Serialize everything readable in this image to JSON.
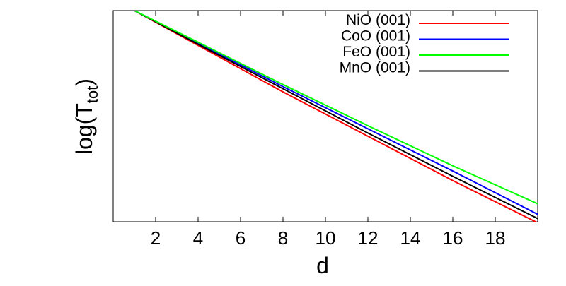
{
  "chart_data": {
    "type": "line",
    "xlabel": "d",
    "ylabel": {
      "main": "log(T",
      "sub": "tot",
      "close": ")"
    },
    "xlim": [
      0,
      20
    ],
    "ylim": [
      0,
      1
    ],
    "x_ticks": [
      2,
      4,
      6,
      8,
      10,
      12,
      14,
      16,
      18
    ],
    "y_tick_labels": false,
    "legend_position": "top-right",
    "series": [
      {
        "name": "NiO (001)",
        "color": "#ff0000",
        "x": [
          1,
          4,
          8,
          12,
          16,
          20
        ],
        "y": [
          1.0,
          0.835,
          0.615,
          0.405,
          0.195,
          -0.005
        ]
      },
      {
        "name": "CoO (001)",
        "color": "#0000ff",
        "x": [
          1,
          4,
          8,
          12,
          16,
          20
        ],
        "y": [
          1.0,
          0.845,
          0.64,
          0.44,
          0.24,
          0.035
        ]
      },
      {
        "name": "FeO (001)",
        "color": "#00ff00",
        "x": [
          1,
          4,
          8,
          12,
          16,
          20
        ],
        "y": [
          1.0,
          0.85,
          0.65,
          0.455,
          0.265,
          0.085
        ]
      },
      {
        "name": "MnO (001)",
        "color": "#000000",
        "x": [
          1,
          4,
          8,
          12,
          16,
          20
        ],
        "y": [
          1.0,
          0.84,
          0.63,
          0.42,
          0.215,
          0.015
        ]
      }
    ]
  }
}
